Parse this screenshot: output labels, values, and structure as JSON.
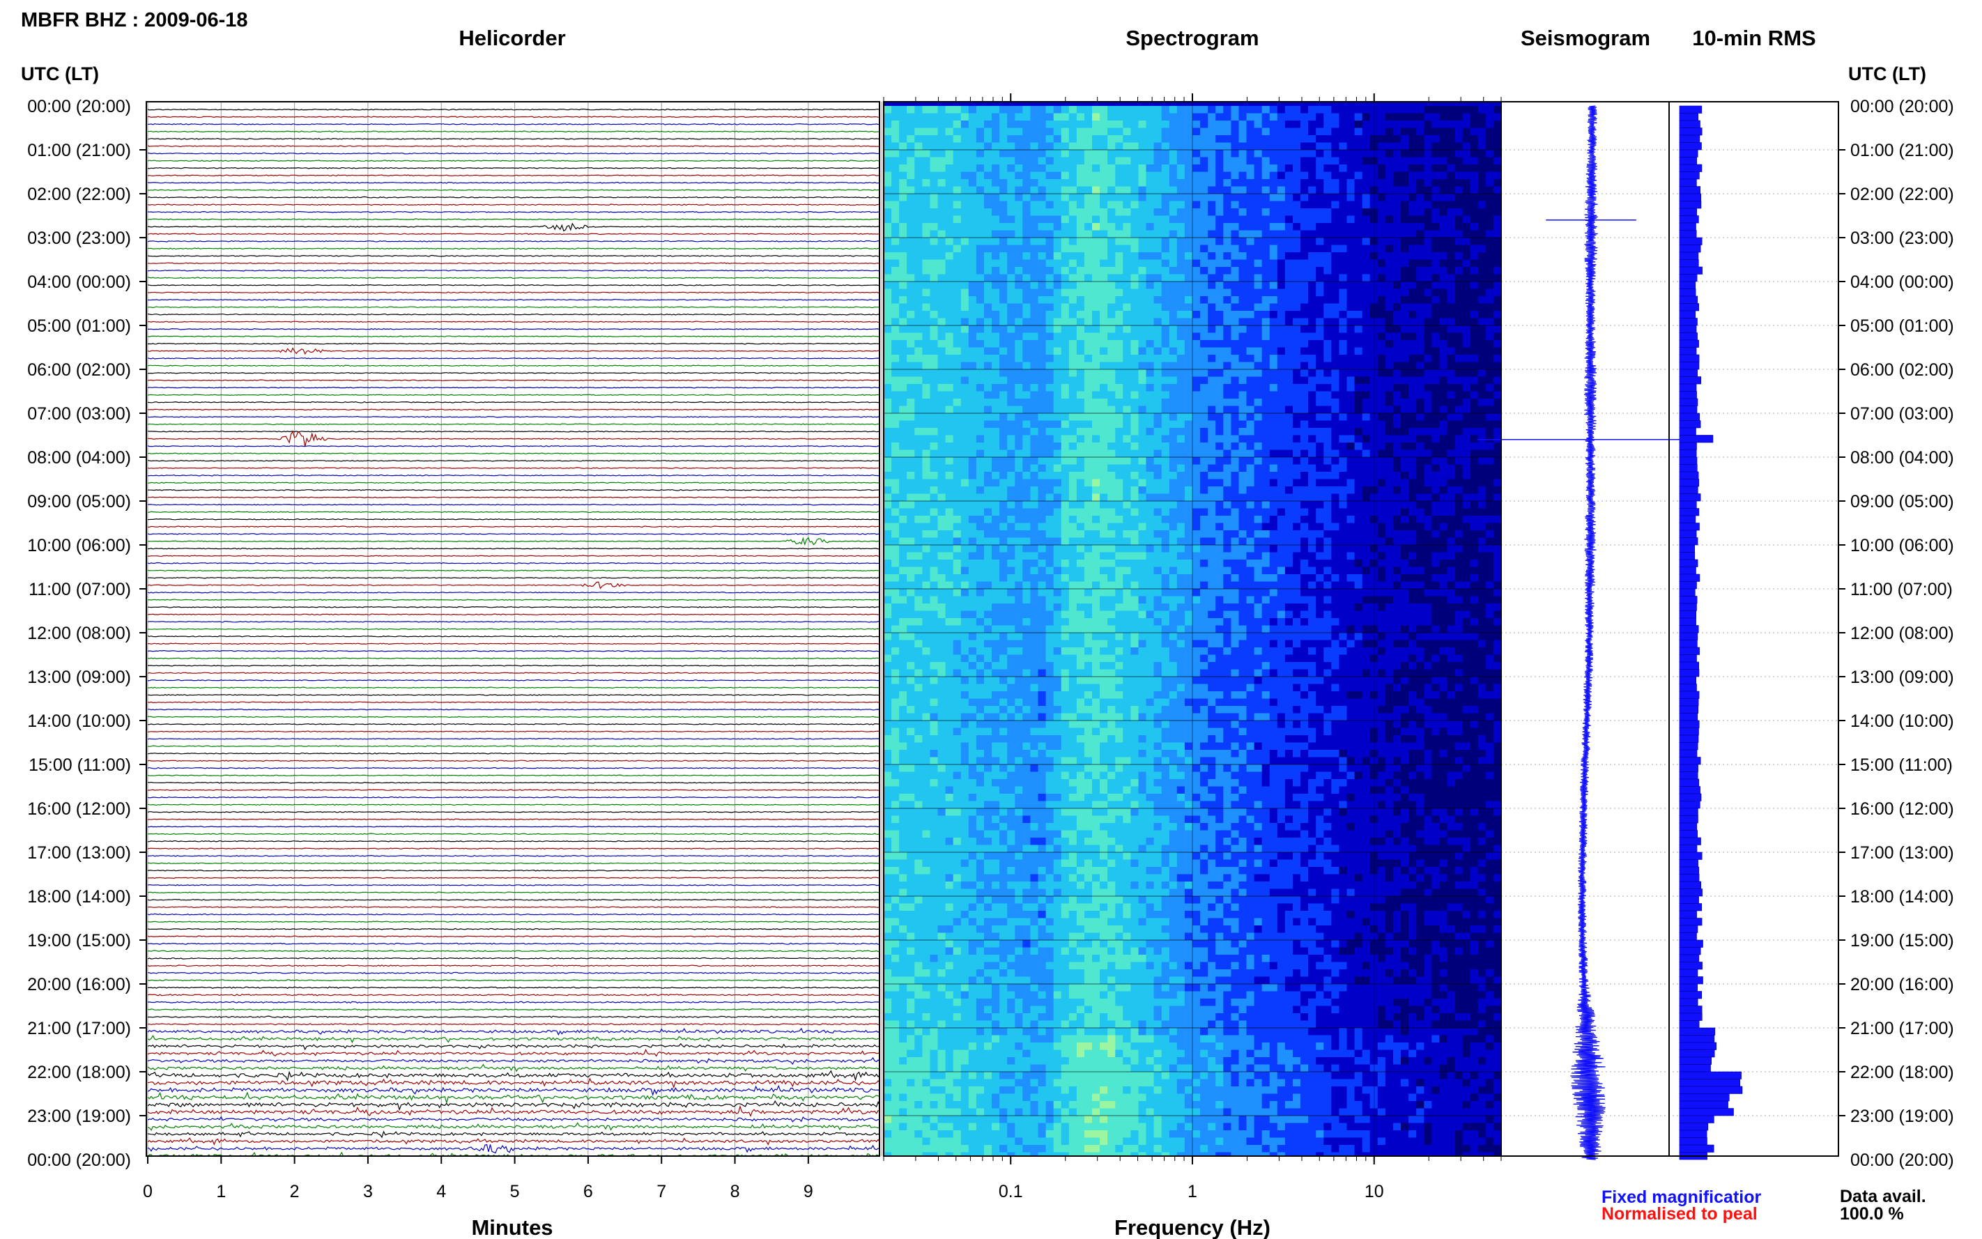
{
  "station_title": "MBFR BHZ : 2009-06-18",
  "panels": {
    "helicorder": "Helicorder",
    "spectrogram": "Spectrogram",
    "seismogram": "Seismogram",
    "rms": "10-min RMS"
  },
  "time_axis": {
    "header": "UTC (LT)",
    "labels": [
      "00:00 (20:00)",
      "01:00 (21:00)",
      "02:00 (22:00)",
      "03:00 (23:00)",
      "04:00 (00:00)",
      "05:00 (01:00)",
      "06:00 (02:00)",
      "07:00 (03:00)",
      "08:00 (04:00)",
      "09:00 (05:00)",
      "10:00 (06:00)",
      "11:00 (07:00)",
      "12:00 (08:00)",
      "13:00 (09:00)",
      "14:00 (10:00)",
      "15:00 (11:00)",
      "16:00 (12:00)",
      "17:00 (13:00)",
      "18:00 (14:00)",
      "19:00 (15:00)",
      "20:00 (16:00)",
      "21:00 (17:00)",
      "22:00 (18:00)",
      "23:00 (19:00)",
      "00:00 (20:00)"
    ]
  },
  "footer": {
    "fixed_magnification": "Fixed magnificatior",
    "normalised": "Normalised to peal",
    "data_avail_label": "Data avail.",
    "data_avail_value": "100.0 %",
    "fixed_color": "#1010ff",
    "normalised_color": "#ff1010"
  },
  "chart_data": [
    {
      "type": "line",
      "panel": "helicorder",
      "xlabel": "Minutes",
      "x_ticks": [
        "0",
        "1",
        "2",
        "3",
        "4",
        "5",
        "6",
        "7",
        "8",
        "9"
      ],
      "xlim": [
        0,
        10
      ],
      "rows_per_hour": 6,
      "hours": 24,
      "trace_colors": [
        "#000000",
        "#a00000",
        "#0000c0",
        "#008000"
      ],
      "noise_by_hour": [
        0.6,
        0.6,
        0.6,
        0.6,
        0.55,
        0.55,
        0.55,
        0.55,
        0.55,
        0.55,
        0.55,
        0.55,
        0.55,
        0.55,
        0.55,
        0.55,
        0.55,
        0.55,
        0.6,
        0.7,
        0.8,
        1.6,
        2.4,
        1.7
      ],
      "events": [
        {
          "row": 16,
          "minute": 5.7,
          "amplitude": 3
        },
        {
          "row": 33,
          "minute": 2.1,
          "amplitude": 3
        },
        {
          "row": 45,
          "minute": 2.1,
          "amplitude": 8
        },
        {
          "row": 59,
          "minute": 9.0,
          "amplitude": 3
        },
        {
          "row": 65,
          "minute": 6.2,
          "amplitude": 2.5
        },
        {
          "row": 142,
          "minute": 4.7,
          "amplitude": 2.5
        }
      ]
    },
    {
      "type": "heatmap",
      "panel": "spectrogram",
      "xlabel": "Frequency (Hz)",
      "x_scale": "log",
      "xlim": [
        0.02,
        50
      ],
      "x_ticks": [
        "0.1",
        "1",
        "10"
      ],
      "colormap": [
        "#00007a",
        "#0000c8",
        "#0a3cff",
        "#1e90ff",
        "#22c4f0",
        "#4fe7d0",
        "#9cf5a0"
      ],
      "profile_note": "",
      "bands_hz": [
        0.02,
        0.05,
        0.1,
        0.15,
        0.2,
        0.3,
        0.5,
        1,
        2,
        4,
        8,
        15,
        30,
        50
      ],
      "band_levels": [
        0.72,
        0.66,
        0.55,
        0.52,
        0.7,
        0.78,
        0.66,
        0.5,
        0.4,
        0.32,
        0.22,
        0.16,
        0.12
      ]
    },
    {
      "type": "line",
      "panel": "seismogram",
      "ylabel": "",
      "hours": [
        0,
        1,
        2,
        3,
        4,
        5,
        6,
        7,
        8,
        9,
        10,
        11,
        12,
        13,
        14,
        15,
        16,
        17,
        18,
        19,
        20,
        21,
        22,
        23,
        24
      ],
      "offset": [
        0.2,
        0.15,
        0.1,
        0.05,
        0.02,
        0.0,
        0.0,
        0.0,
        0.0,
        0.0,
        0.0,
        -0.05,
        -0.1,
        -0.2,
        -0.35,
        -0.5,
        -0.65,
        -0.75,
        -0.8,
        -0.75,
        -0.6,
        -0.4,
        -0.2,
        0.0,
        0.1
      ],
      "amplitude": [
        0.08,
        0.08,
        0.1,
        0.12,
        0.08,
        0.08,
        0.1,
        0.1,
        0.08,
        0.08,
        0.1,
        0.08,
        0.07,
        0.07,
        0.07,
        0.07,
        0.07,
        0.07,
        0.07,
        0.07,
        0.08,
        0.18,
        0.3,
        0.25,
        0.15
      ],
      "spikes": [
        {
          "hour": 2.6,
          "width": 1.2
        },
        {
          "hour": 7.6,
          "width": 3.0
        }
      ]
    },
    {
      "type": "bar",
      "panel": "rms",
      "orientation": "horizontal",
      "bin_minutes": 10,
      "rms_by_hour": [
        1.0,
        0.95,
        0.9,
        0.95,
        0.85,
        0.85,
        0.9,
        0.9,
        0.95,
        0.85,
        0.85,
        0.85,
        0.85,
        0.9,
        0.9,
        0.9,
        0.9,
        0.95,
        0.95,
        1.0,
        1.0,
        1.6,
        2.6,
        1.5
      ],
      "peaks": [
        {
          "bin": 45,
          "value": 1.6
        },
        {
          "bin": 134,
          "value": 3.0
        }
      ]
    }
  ]
}
